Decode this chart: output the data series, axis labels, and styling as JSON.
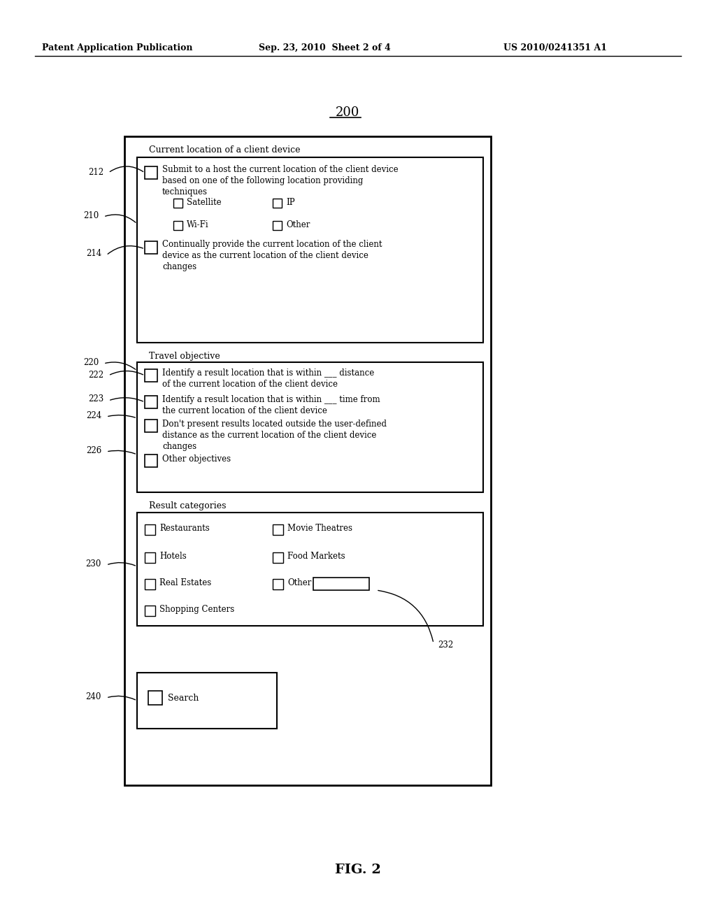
{
  "background": "#ffffff",
  "header_left": "Patent Application Publication",
  "header_mid": "Sep. 23, 2010  Sheet 2 of 4",
  "header_right": "US 2010/0241351 A1",
  "title": "200",
  "fig_label": "FIG. 2"
}
